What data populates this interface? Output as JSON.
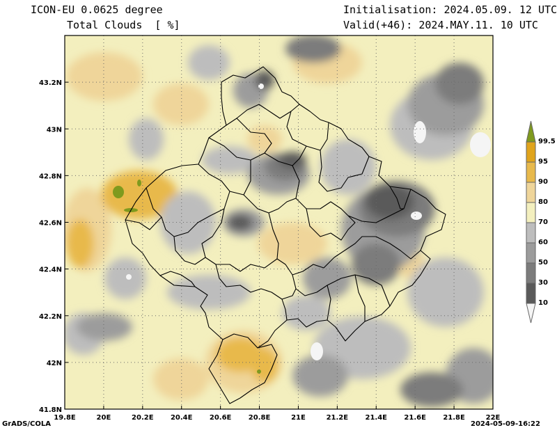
{
  "header": {
    "model": "ICON-EU 0.0625 degree",
    "field": "Total Clouds  [ %]",
    "init": "Initialisation: 2024.05.09. 12 UTC",
    "valid": "Valid(+46): 2024.MAY.11. 10 UTC"
  },
  "map": {
    "lon_range": [
      19.8,
      22.0
    ],
    "lat_range": [
      41.8,
      43.4
    ],
    "lon_ticks": [
      "19.8E",
      "20E",
      "20.2E",
      "20.4E",
      "20.6E",
      "20.8E",
      "21E",
      "21.2E",
      "21.4E",
      "21.6E",
      "21.8E",
      "22E"
    ],
    "lat_ticks": [
      "41.8N",
      "42N",
      "42.2N",
      "42.4N",
      "42.6N",
      "42.8N",
      "43N",
      "43.2N"
    ],
    "grid": "dotted"
  },
  "legend": {
    "levels": [
      "10",
      "30",
      "50",
      "60",
      "70",
      "80",
      "90",
      "95",
      "99.5"
    ],
    "colors": {
      "lt10": "#f5f5f5",
      "b10_30": "#5a5a5a",
      "b30_50": "#7c7c7c",
      "b50_60": "#9c9c9c",
      "b60_70": "#bdbdbd",
      "b70_80": "#f3efbe",
      "b80_90": "#efd59a",
      "b90_95": "#e8b94c",
      "b95_99": "#e0a41c",
      "gt99": "#7f9a1e"
    }
  },
  "footer": {
    "left": "GrADS/COLA",
    "right": "2024-05-09-16:22"
  }
}
